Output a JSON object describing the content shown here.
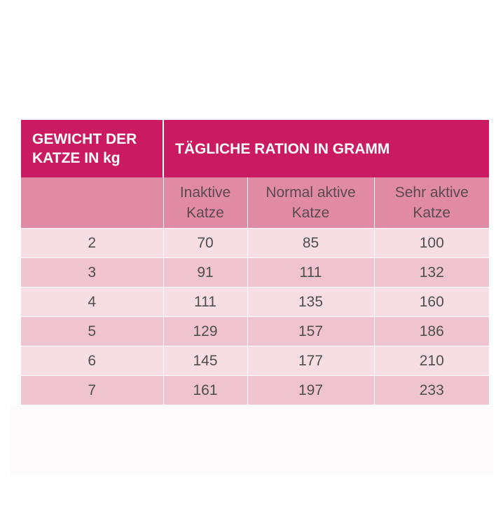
{
  "table": {
    "header_weight": "GEWICHT DER KATZE IN kg",
    "header_ration": "TÄGLICHE RATION IN GRAMM",
    "subheaders": [
      "",
      "Inaktive Katze",
      "Normal aktive Katze",
      "Sehr aktive Katze"
    ],
    "rows": [
      [
        "2",
        "70",
        "85",
        "100"
      ],
      [
        "3",
        "91",
        "111",
        "132"
      ],
      [
        "4",
        "111",
        "135",
        "160"
      ],
      [
        "5",
        "129",
        "157",
        "186"
      ],
      [
        "6",
        "145",
        "177",
        "210"
      ],
      [
        "7",
        "161",
        "197",
        "233"
      ]
    ],
    "colors": {
      "header": "#c91a62",
      "subheader": "#e08aa6",
      "row_light": "#f7dde4",
      "row_dark": "#efc3d0"
    }
  }
}
